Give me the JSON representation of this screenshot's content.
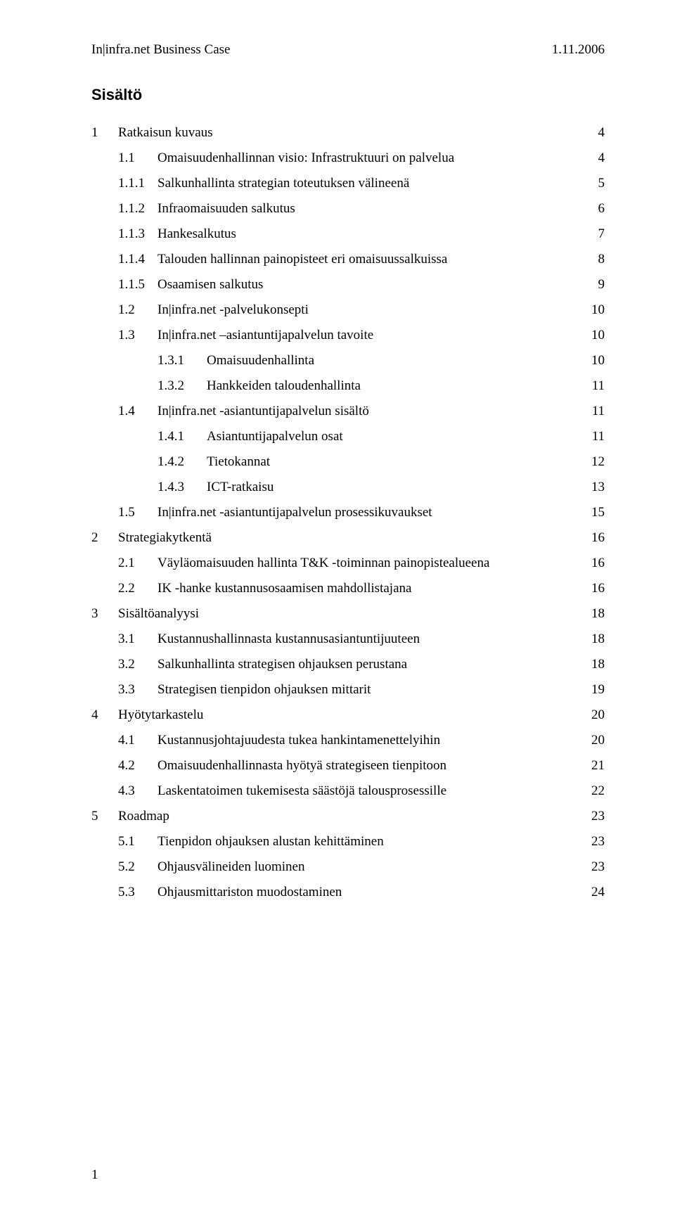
{
  "header": {
    "left": "In|infra.net Business Case",
    "right": "1.11.2006"
  },
  "title": "Sisältö",
  "page_number": "1",
  "typography": {
    "body_font": "Times New Roman",
    "title_font": "Arial",
    "body_size_pt": 14,
    "title_size_pt": 16,
    "title_weight": "bold",
    "text_color": "#000000",
    "background_color": "#ffffff"
  },
  "toc": [
    {
      "level": 0,
      "num": "1",
      "label": "Ratkaisun kuvaus",
      "page": "4",
      "leader": true
    },
    {
      "level": 1,
      "num": "1.1",
      "label": "Omaisuudenhallinnan visio: Infrastruktuuri on palvelua",
      "page": "4",
      "leader": true
    },
    {
      "level": 1,
      "num": "1.1.1",
      "label": "Salkunhallinta strategian toteutuksen välineenä",
      "page": "5",
      "leader": true
    },
    {
      "level": 1,
      "num": "1.1.2",
      "label": "Infraomaisuuden salkutus",
      "page": "6",
      "leader": true
    },
    {
      "level": 1,
      "num": "1.1.3",
      "label": "Hankesalkutus",
      "page": "7",
      "leader": true
    },
    {
      "level": 1,
      "num": "1.1.4",
      "label": "Talouden hallinnan painopisteet eri omaisuussalkuissa",
      "page": "8",
      "leader": true
    },
    {
      "level": 1,
      "num": "1.1.5",
      "label": "Osaamisen salkutus",
      "page": "9",
      "leader": true
    },
    {
      "level": 1,
      "num": "1.2",
      "label": "In|infra.net -palvelukonsepti",
      "page": "10",
      "leader": true
    },
    {
      "level": 1,
      "num": "1.3",
      "label": "In|infra.net –asiantuntijapalvelun tavoite",
      "page": "10",
      "leader": true
    },
    {
      "level": 2,
      "num": "1.3.1",
      "label": "Omaisuudenhallinta",
      "page": "10",
      "leader": true
    },
    {
      "level": 2,
      "num": "1.3.2",
      "label": "Hankkeiden taloudenhallinta",
      "page": "11",
      "leader": true
    },
    {
      "level": 1,
      "num": "1.4",
      "label": "In|infra.net -asiantuntijapalvelun sisältö",
      "page": "11",
      "leader": true
    },
    {
      "level": 2,
      "num": "1.4.1",
      "label": "Asiantuntijapalvelun osat",
      "page": "11",
      "leader": true
    },
    {
      "level": 2,
      "num": "1.4.2",
      "label": "Tietokannat",
      "page": "12",
      "leader": true
    },
    {
      "level": 2,
      "num": "1.4.3",
      "label": "ICT-ratkaisu",
      "page": "13",
      "leader": true
    },
    {
      "level": 1,
      "num": "1.5",
      "label": "In|infra.net -asiantuntijapalvelun prosessikuvaukset",
      "page": "15",
      "leader": true
    },
    {
      "level": 0,
      "num": "2",
      "label": "Strategiakytkentä",
      "page": "16",
      "leader": true
    },
    {
      "level": 1,
      "num": "2.1",
      "label": "Väyläomaisuuden hallinta T&K -toiminnan painopistealueena",
      "page": "16",
      "leader": false
    },
    {
      "level": 1,
      "num": "2.2",
      "label": "IK -hanke kustannusosaamisen mahdollistajana",
      "page": "16",
      "leader": true
    },
    {
      "level": 0,
      "num": "3",
      "label": "Sisältöanalyysi",
      "page": "18",
      "leader": true
    },
    {
      "level": 1,
      "num": "3.1",
      "label": "Kustannushallinnasta kustannusasiantuntijuuteen",
      "page": "18",
      "leader": true
    },
    {
      "level": 1,
      "num": "3.2",
      "label": "Salkunhallinta strategisen ohjauksen perustana",
      "page": "18",
      "leader": true
    },
    {
      "level": 1,
      "num": "3.3",
      "label": "Strategisen tienpidon ohjauksen mittarit",
      "page": "19",
      "leader": true
    },
    {
      "level": 0,
      "num": "4",
      "label": "Hyötytarkastelu",
      "page": "20",
      "leader": true
    },
    {
      "level": 1,
      "num": "4.1",
      "label": "Kustannusjohtajuudesta tukea hankintamenettelyihin",
      "page": "20",
      "leader": true
    },
    {
      "level": 1,
      "num": "4.2",
      "label": "Omaisuudenhallinnasta hyötyä strategiseen tienpitoon",
      "page": "21",
      "leader": true
    },
    {
      "level": 1,
      "num": "4.3",
      "label": "Laskentatoimen tukemisesta säästöjä talousprosessille",
      "page": "22",
      "leader": true
    },
    {
      "level": 0,
      "num": "5",
      "label": "Roadmap",
      "page": "23",
      "leader": true
    },
    {
      "level": 1,
      "num": "5.1",
      "label": "Tienpidon ohjauksen alustan kehittäminen",
      "page": "23",
      "leader": true
    },
    {
      "level": 1,
      "num": "5.2",
      "label": "Ohjausvälineiden luominen",
      "page": "23",
      "leader": true
    },
    {
      "level": 1,
      "num": "5.3",
      "label": "Ohjausmittariston muodostaminen",
      "page": "24",
      "leader": true
    }
  ]
}
